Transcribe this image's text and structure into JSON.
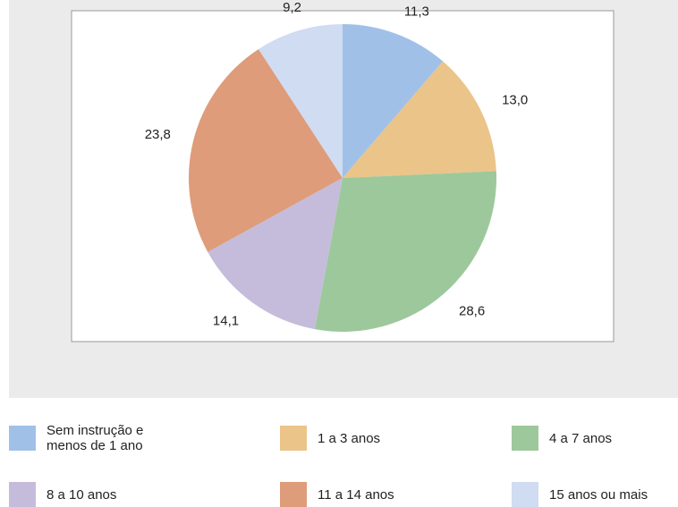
{
  "chart_data": {
    "type": "pie",
    "categories": [
      "Sem instrução e menos de 1 ano",
      "1 a 3 anos",
      "4 a 7 anos",
      "8 a 10 anos",
      "11 a 14 anos",
      "15 anos ou mais"
    ],
    "values": [
      11.3,
      13.0,
      28.6,
      14.1,
      23.8,
      9.2
    ],
    "value_labels": [
      "11,3",
      "13,0",
      "28,6",
      "14,1",
      "23,8",
      "9,2"
    ],
    "colors": [
      "#a0c0e8",
      "#ebc489",
      "#9dc89c",
      "#c5bcdc",
      "#de9c7a",
      "#cfdcf2"
    ]
  }
}
